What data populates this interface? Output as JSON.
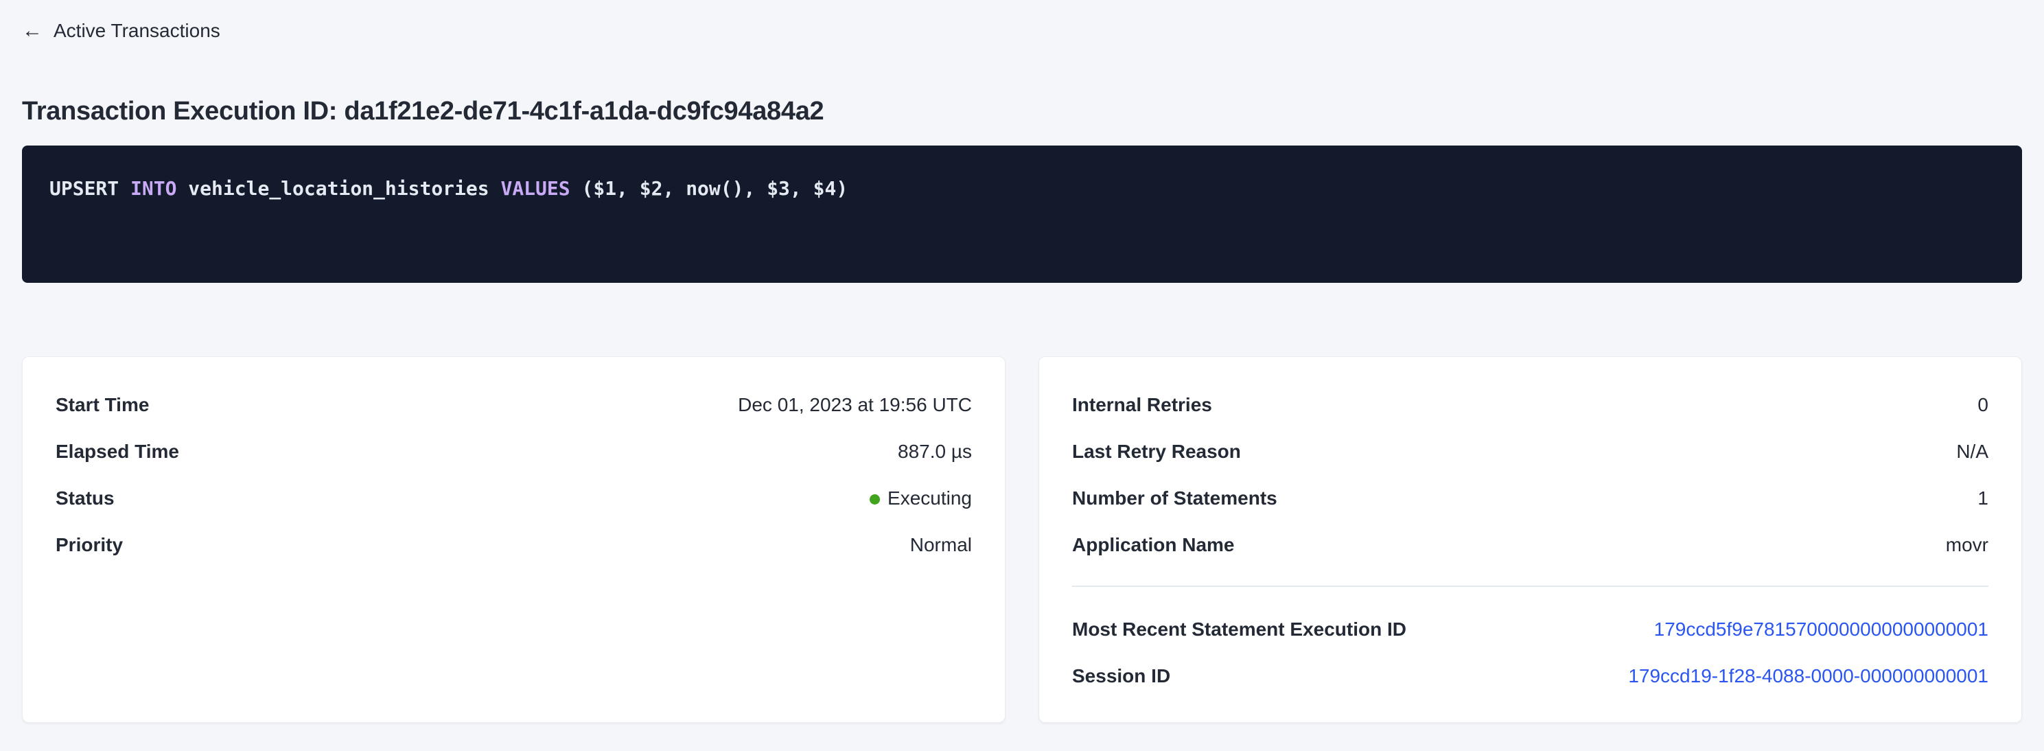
{
  "colors": {
    "page_bg": "#f5f6fa",
    "text_dark": "#242a35",
    "card_bg": "#ffffff",
    "card_border": "#e9ecf3",
    "divider": "#e4e8f0",
    "link_blue": "#2b55f0",
    "status_green": "#41a41c",
    "sql_bg": "#131a2c",
    "sql_text": "#e5e9f2",
    "sql_keyword": "#c9aaf5"
  },
  "back_link": {
    "label": "Active Transactions",
    "icon": "arrow-left-icon"
  },
  "page_title": "Transaction Execution ID: da1f21e2-de71-4c1f-a1da-dc9fc94a84a2",
  "sql_box": {
    "tokens": [
      {
        "text": "UPSERT ",
        "type": "plain"
      },
      {
        "text": "INTO",
        "type": "keyword"
      },
      {
        "text": " vehicle_location_histories ",
        "type": "plain"
      },
      {
        "text": "VALUES",
        "type": "keyword"
      },
      {
        "text": " ($1, $2, now(), $3, $4)",
        "type": "plain"
      }
    ]
  },
  "cards": {
    "left": {
      "rows": [
        {
          "label": "Start Time",
          "value": "Dec 01, 2023 at 19:56 UTC"
        },
        {
          "label": "Elapsed Time",
          "value": "887.0 µs"
        },
        {
          "label": "Status",
          "value": "Executing",
          "status_dot": true,
          "status_color": "#41a41c"
        },
        {
          "label": "Priority",
          "value": "Normal"
        }
      ]
    },
    "right": {
      "rows": [
        {
          "label": "Internal Retries",
          "value": "0"
        },
        {
          "label": "Last Retry Reason",
          "value": "N/A"
        },
        {
          "label": "Number of Statements",
          "value": "1"
        },
        {
          "label": "Application Name",
          "value": "movr"
        }
      ],
      "link_rows": [
        {
          "label": "Most Recent Statement Execution ID",
          "value": "179ccd5f9e7815700000000000000001"
        },
        {
          "label": "Session ID",
          "value": "179ccd19-1f28-4088-0000-000000000001"
        }
      ]
    }
  }
}
